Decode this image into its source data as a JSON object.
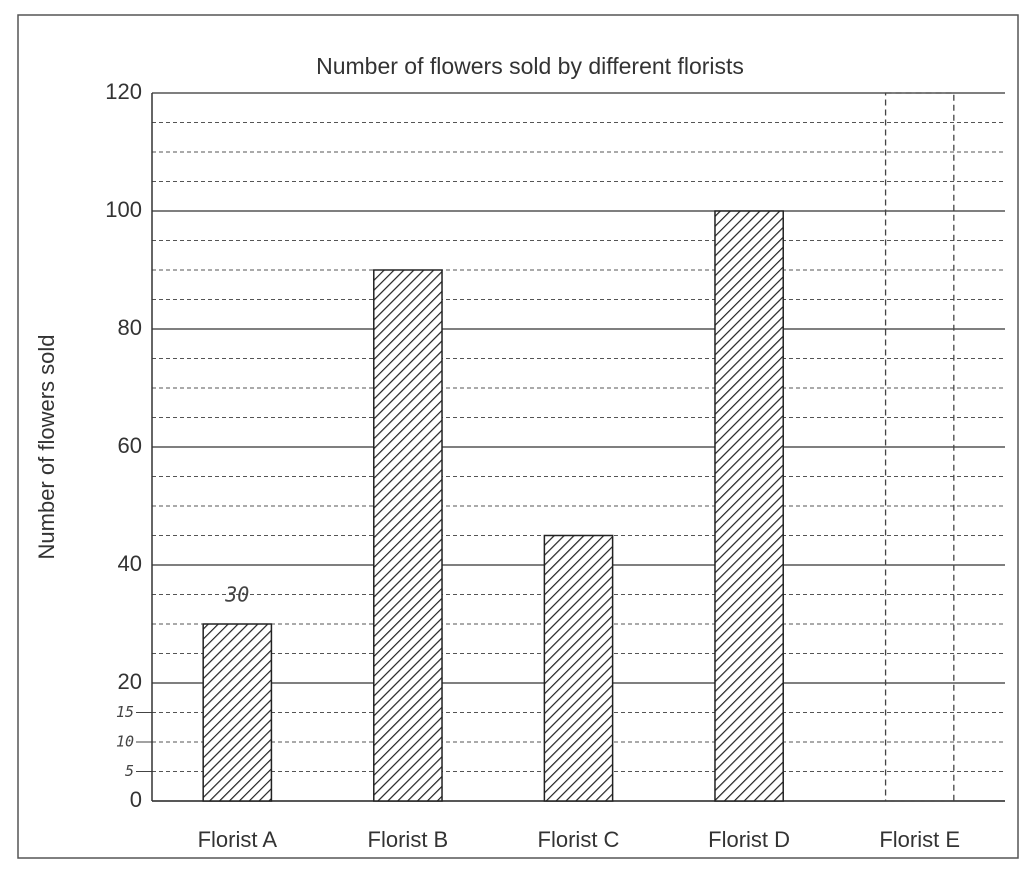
{
  "chart_data": {
    "type": "bar",
    "title": "Number of flowers sold by different florists",
    "y_label": "Number of flowers sold",
    "categories": [
      "Florist A",
      "Florist B",
      "Florist C",
      "Florist D",
      "Florist E"
    ],
    "values": [
      30,
      90,
      45,
      100,
      null
    ],
    "value_labels": [
      "30",
      null,
      null,
      null,
      null
    ],
    "color": "#222222",
    "ylim": [
      0,
      120
    ],
    "yticks": [
      0,
      20,
      40,
      60,
      80,
      100,
      120
    ],
    "handwritten_yticks": [
      5,
      10,
      15
    ],
    "grid": true,
    "minor_grid_step": 5
  }
}
